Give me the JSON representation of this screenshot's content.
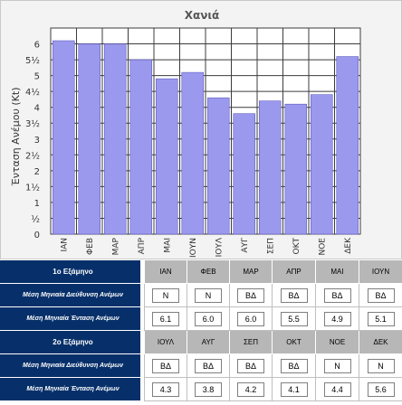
{
  "chart_data": {
    "type": "bar",
    "title": "Χανιά",
    "xlabel": "",
    "ylabel": "Ένταση Ανέμου (Kt)",
    "categories": [
      "ΙΑΝ",
      "ΦΕΒ",
      "ΜΑΡ",
      "ΑΠΡ",
      "ΜΑΙ",
      "ΙΟΥΝ",
      "ΙΟΥΛ",
      "ΑΥΓ",
      "ΣΕΠ",
      "ΟΚΤ",
      "ΝΟΕ",
      "ΔΕΚ"
    ],
    "values": [
      6.1,
      6.0,
      6.0,
      5.5,
      4.9,
      5.1,
      4.3,
      3.8,
      4.2,
      4.1,
      4.4,
      5.6
    ],
    "ylim": [
      0,
      6.5
    ],
    "yticks": [
      0,
      0.5,
      1,
      1.5,
      2,
      2.5,
      3,
      3.5,
      4,
      4.5,
      5,
      5.5,
      6
    ],
    "ytick_labels": [
      "0",
      "½",
      "1",
      "1½",
      "2",
      "2½",
      "3",
      "3½",
      "4",
      "4½",
      "5",
      "5½",
      "6"
    ],
    "grid": true,
    "colors": {
      "bar": "#9b99ee",
      "bar_edge": "#5e5bbf",
      "grid": "#3c3c3c",
      "plot_bg": "#ffffff"
    }
  },
  "table": {
    "sem1_label": "1ο Εξάμηνο",
    "sem2_label": "2ο Εξάμηνο",
    "dir_label": "Μέση Μηνιαία Διεύθυνση Ανέμων",
    "int_label": "Μέση Μηνιαία Ένταση Ανέμων",
    "sem1": {
      "months": [
        "ΙΑΝ",
        "ΦΕΒ",
        "ΜΑΡ",
        "ΑΠΡ",
        "ΜΑΙ",
        "ΙΟΥΝ"
      ],
      "direction": [
        "N",
        "N",
        "ΒΔ",
        "ΒΔ",
        "ΒΔ",
        "ΒΔ"
      ],
      "intensity": [
        "6.1",
        "6.0",
        "6.0",
        "5.5",
        "4.9",
        "5.1"
      ]
    },
    "sem2": {
      "months": [
        "ΙΟΥΛ",
        "ΑΥΓ",
        "ΣΕΠ",
        "ΟΚΤ",
        "ΝΟΕ",
        "ΔΕΚ"
      ],
      "direction": [
        "ΒΔ",
        "ΒΔ",
        "ΒΔ",
        "ΒΔ",
        "N",
        "N"
      ],
      "intensity": [
        "4.3",
        "3.8",
        "4.2",
        "4.1",
        "4.4",
        "5.6"
      ]
    }
  }
}
